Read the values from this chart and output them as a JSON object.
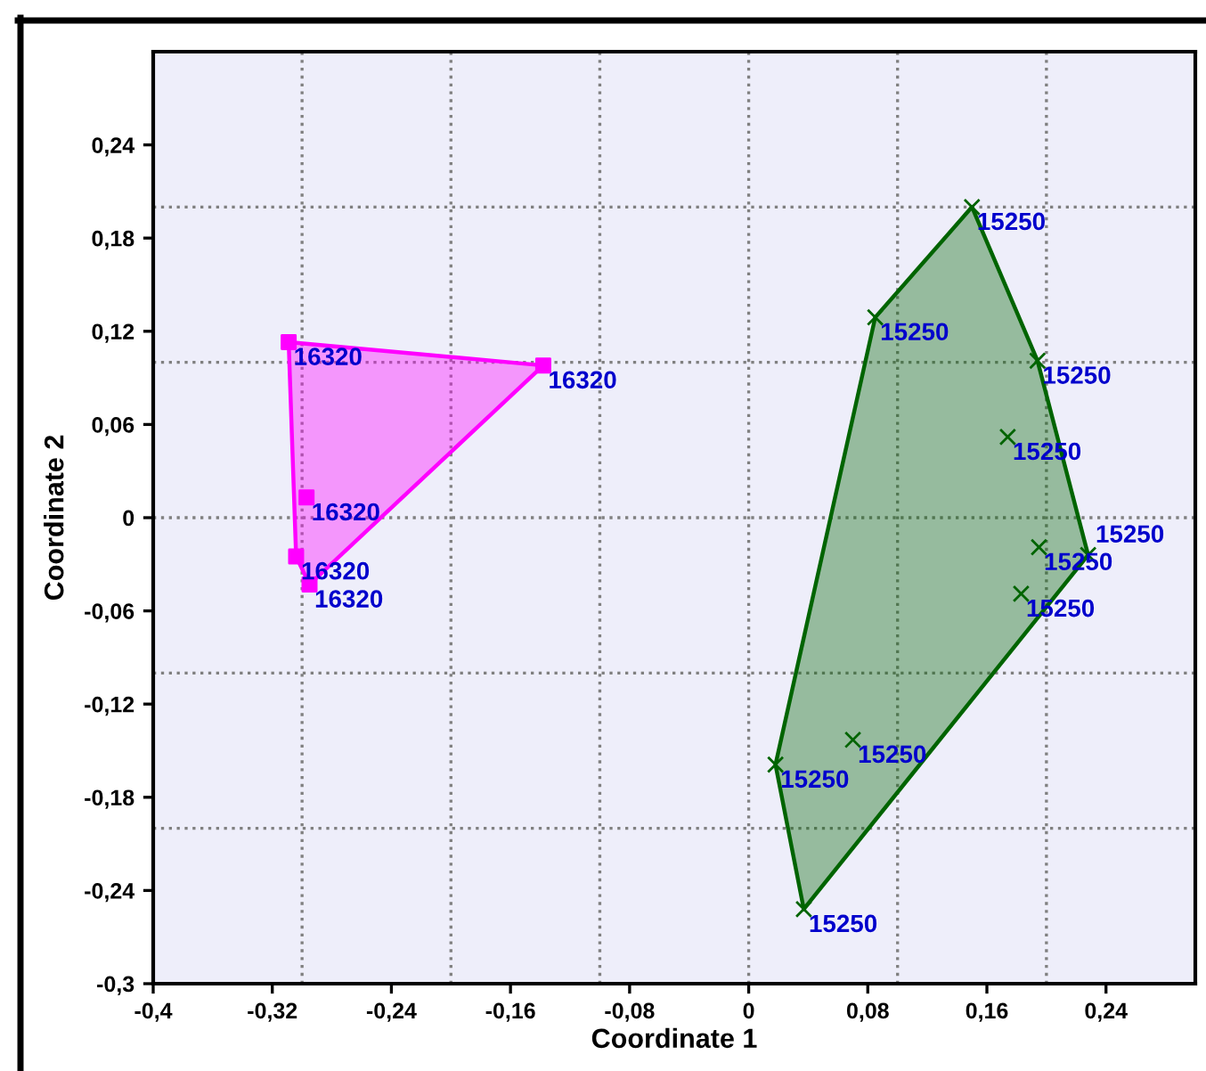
{
  "chart_data": {
    "type": "scatter",
    "xlabel": "Coordinate 1",
    "ylabel": "Coordinate 2",
    "xlim": [
      -0.4,
      0.3
    ],
    "ylim": [
      -0.3,
      0.3
    ],
    "xticks": [
      {
        "value": -0.4,
        "label": "-0,4"
      },
      {
        "value": -0.32,
        "label": "-0,32"
      },
      {
        "value": -0.24,
        "label": "-0,24"
      },
      {
        "value": -0.16,
        "label": "-0,16"
      },
      {
        "value": -0.08,
        "label": "-0,08"
      },
      0,
      {
        "value": 0.08,
        "label": "0,08"
      },
      {
        "value": 0.16,
        "label": "0,16"
      },
      {
        "value": 0.24,
        "label": "0,24"
      }
    ],
    "yticks": [
      {
        "value": -0.3,
        "label": "-0,3"
      },
      {
        "value": -0.24,
        "label": "-0,24"
      },
      {
        "value": -0.18,
        "label": "-0,18"
      },
      {
        "value": -0.12,
        "label": "-0,12"
      },
      {
        "value": -0.06,
        "label": "-0,06"
      },
      0,
      {
        "value": 0.06,
        "label": "0,06"
      },
      {
        "value": 0.12,
        "label": "0,12"
      },
      {
        "value": 0.18,
        "label": "0,18"
      },
      {
        "value": 0.24,
        "label": "0,24"
      }
    ],
    "ref_lines": [
      {
        "axis": "x",
        "value": -0.3,
        "color": "#808080",
        "line_style": "dotted"
      },
      {
        "axis": "x",
        "value": -0.2,
        "color": "#808080",
        "line_style": "dotted"
      },
      {
        "axis": "x",
        "value": -0.1,
        "color": "#808080",
        "line_style": "dotted"
      },
      {
        "axis": "x",
        "value": 0,
        "color": "#808080",
        "line_style": "dotted"
      },
      {
        "axis": "x",
        "value": 0.1,
        "color": "#808080",
        "line_style": "dotted"
      },
      {
        "axis": "x",
        "value": 0.2,
        "color": "#808080",
        "line_style": "dotted"
      },
      {
        "axis": "y",
        "value": -0.2,
        "color": "#808080",
        "line_style": "dotted"
      },
      {
        "axis": "y",
        "value": -0.1,
        "color": "#808080",
        "line_style": "dotted"
      },
      {
        "axis": "y",
        "value": 0,
        "color": "#808080",
        "line_style": "dotted"
      },
      {
        "axis": "y",
        "value": 0.1,
        "color": "#808080",
        "line_style": "dotted"
      },
      {
        "axis": "y",
        "value": 0.2,
        "color": "#808080",
        "line_style": "dotted"
      }
    ],
    "series": [
      {
        "type": "area",
        "color": "#ff00ff",
        "x": [
          -0.309,
          -0.138,
          -0.295,
          -0.304
        ],
        "values": [
          0.113,
          0.098,
          -0.043,
          -0.025
        ]
      },
      {
        "marker": "square",
        "color": "#ff00ff",
        "x": [
          -0.309,
          -0.138,
          -0.297,
          -0.304,
          -0.295
        ],
        "values": [
          0.113,
          0.098,
          0.013,
          -0.025,
          -0.043
        ]
      },
      {
        "type": "area",
        "color": "#006400",
        "x": [
          0.15,
          0.194,
          0.228,
          0.037,
          0.018,
          0.085
        ],
        "values": [
          0.2,
          0.101,
          -0.024,
          -0.252,
          -0.159,
          0.129
        ]
      },
      {
        "marker": "cross",
        "color": "#006400",
        "x": [
          0.15,
          0.085,
          0.194,
          0.174,
          0.195,
          0.228,
          0.183,
          0.07,
          0.018,
          0.037
        ],
        "values": [
          0.2,
          0.129,
          0.101,
          0.052,
          -0.019,
          -0.024,
          -0.049,
          -0.143,
          -0.159,
          -0.252
        ]
      }
    ],
    "annotations": [
      {
        "text": "16320",
        "x": -0.309,
        "y": 0.113
      },
      {
        "text": "16320",
        "x": -0.138,
        "y": 0.098
      },
      {
        "text": "16320",
        "x": -0.297,
        "y": 0.013
      },
      {
        "text": "16320",
        "x": -0.304,
        "y": -0.025
      },
      {
        "text": "16320",
        "x": -0.295,
        "y": -0.043
      },
      {
        "text": "15250",
        "x": 0.15,
        "y": 0.2
      },
      {
        "text": "15250",
        "x": 0.085,
        "y": 0.129
      },
      {
        "text": "15250",
        "x": 0.194,
        "y": 0.101
      },
      {
        "text": "15250",
        "x": 0.174,
        "y": 0.052
      },
      {
        "text": "15250",
        "x": 0.195,
        "y": -0.019
      },
      {
        "text": "15250",
        "x": 0.228,
        "y": -0.024
      },
      {
        "text": "15250",
        "x": 0.183,
        "y": -0.049
      },
      {
        "text": "15250",
        "x": 0.07,
        "y": -0.143
      },
      {
        "text": "15250",
        "x": 0.018,
        "y": -0.159
      },
      {
        "text": "15250",
        "x": 0.037,
        "y": -0.252
      }
    ]
  }
}
